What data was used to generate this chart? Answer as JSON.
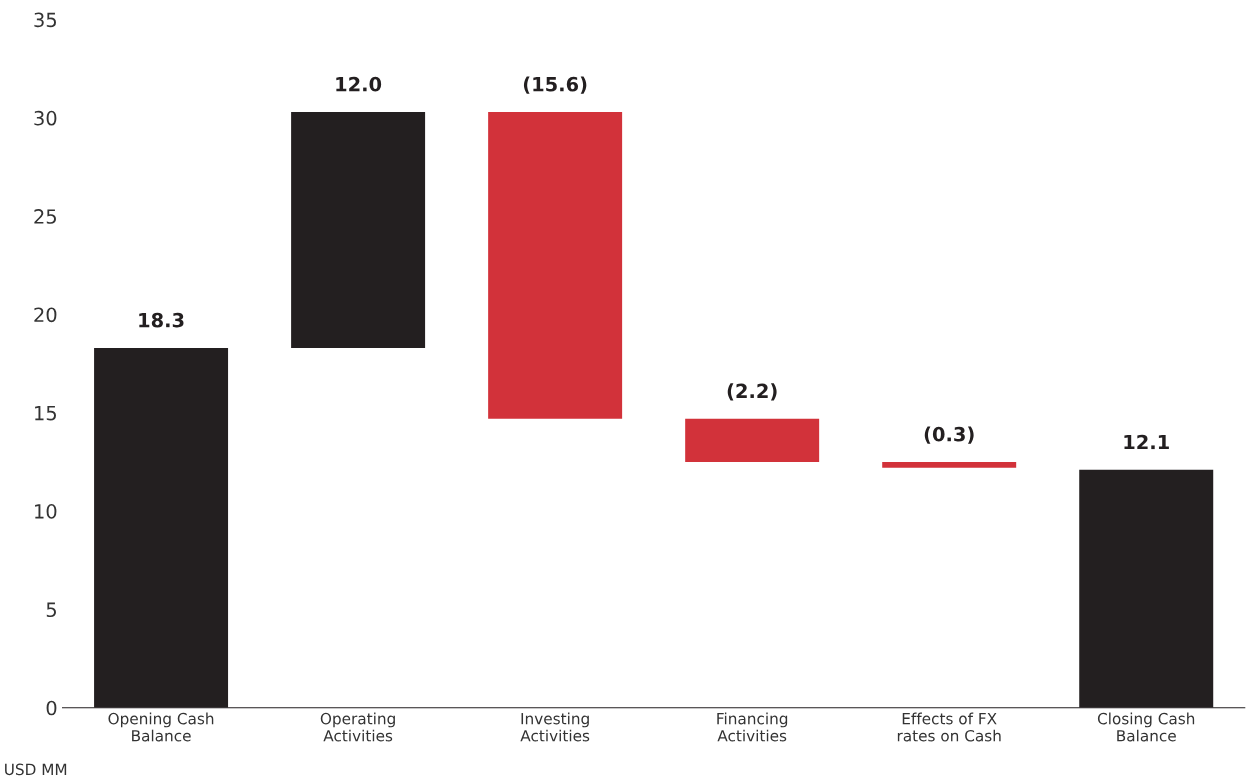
{
  "chart_data": {
    "type": "bar",
    "categories": [
      "Opening Cash\nBalance",
      "Operating\nActivities",
      "Investing\nActivities",
      "Financing\nActivities",
      "Effects of FX\nrates on Cash",
      "Closing Cash\nBalance"
    ],
    "values": [
      18.3,
      12.0,
      -15.6,
      -2.2,
      -0.3,
      12.1
    ],
    "base": [
      0,
      18.3,
      30.3,
      14.7,
      12.5,
      0
    ],
    "colors": [
      "#231f20",
      "#231f20",
      "#d2323a",
      "#d2323a",
      "#d2323a",
      "#231f20"
    ],
    "value_labels": [
      "18.3",
      "12.0",
      "(15.6)",
      "(2.2)",
      "(0.3)",
      "12.1"
    ],
    "ylim": [
      0,
      35
    ],
    "yticks": [
      0,
      5,
      10,
      15,
      20,
      25,
      30,
      35
    ],
    "grid": false,
    "annotations": [
      "USD MM"
    ]
  }
}
